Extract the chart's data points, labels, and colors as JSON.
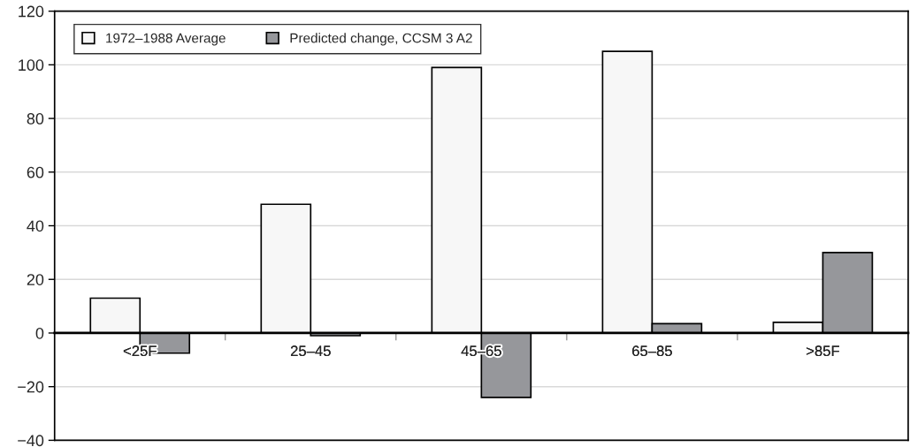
{
  "chart_data": {
    "type": "bar",
    "categories": [
      "<25F",
      "25–45",
      "45–65",
      "65–85",
      ">85F"
    ],
    "series": [
      {
        "name": "1972–1988 Average",
        "color": "#f7f7f7",
        "values": [
          13,
          48,
          99,
          105,
          4
        ]
      },
      {
        "name": "Predicted change, CCSM 3 A2",
        "color": "#96979b",
        "values": [
          -7.5,
          -1,
          -24,
          3.5,
          30
        ]
      }
    ],
    "ylim": [
      -40,
      120
    ],
    "yticks": [
      {
        "value": -40,
        "label": "−40"
      },
      {
        "value": -20,
        "label": "−20"
      },
      0,
      20,
      40,
      60,
      80,
      100,
      120
    ],
    "grid": "y",
    "legend": "top left"
  }
}
